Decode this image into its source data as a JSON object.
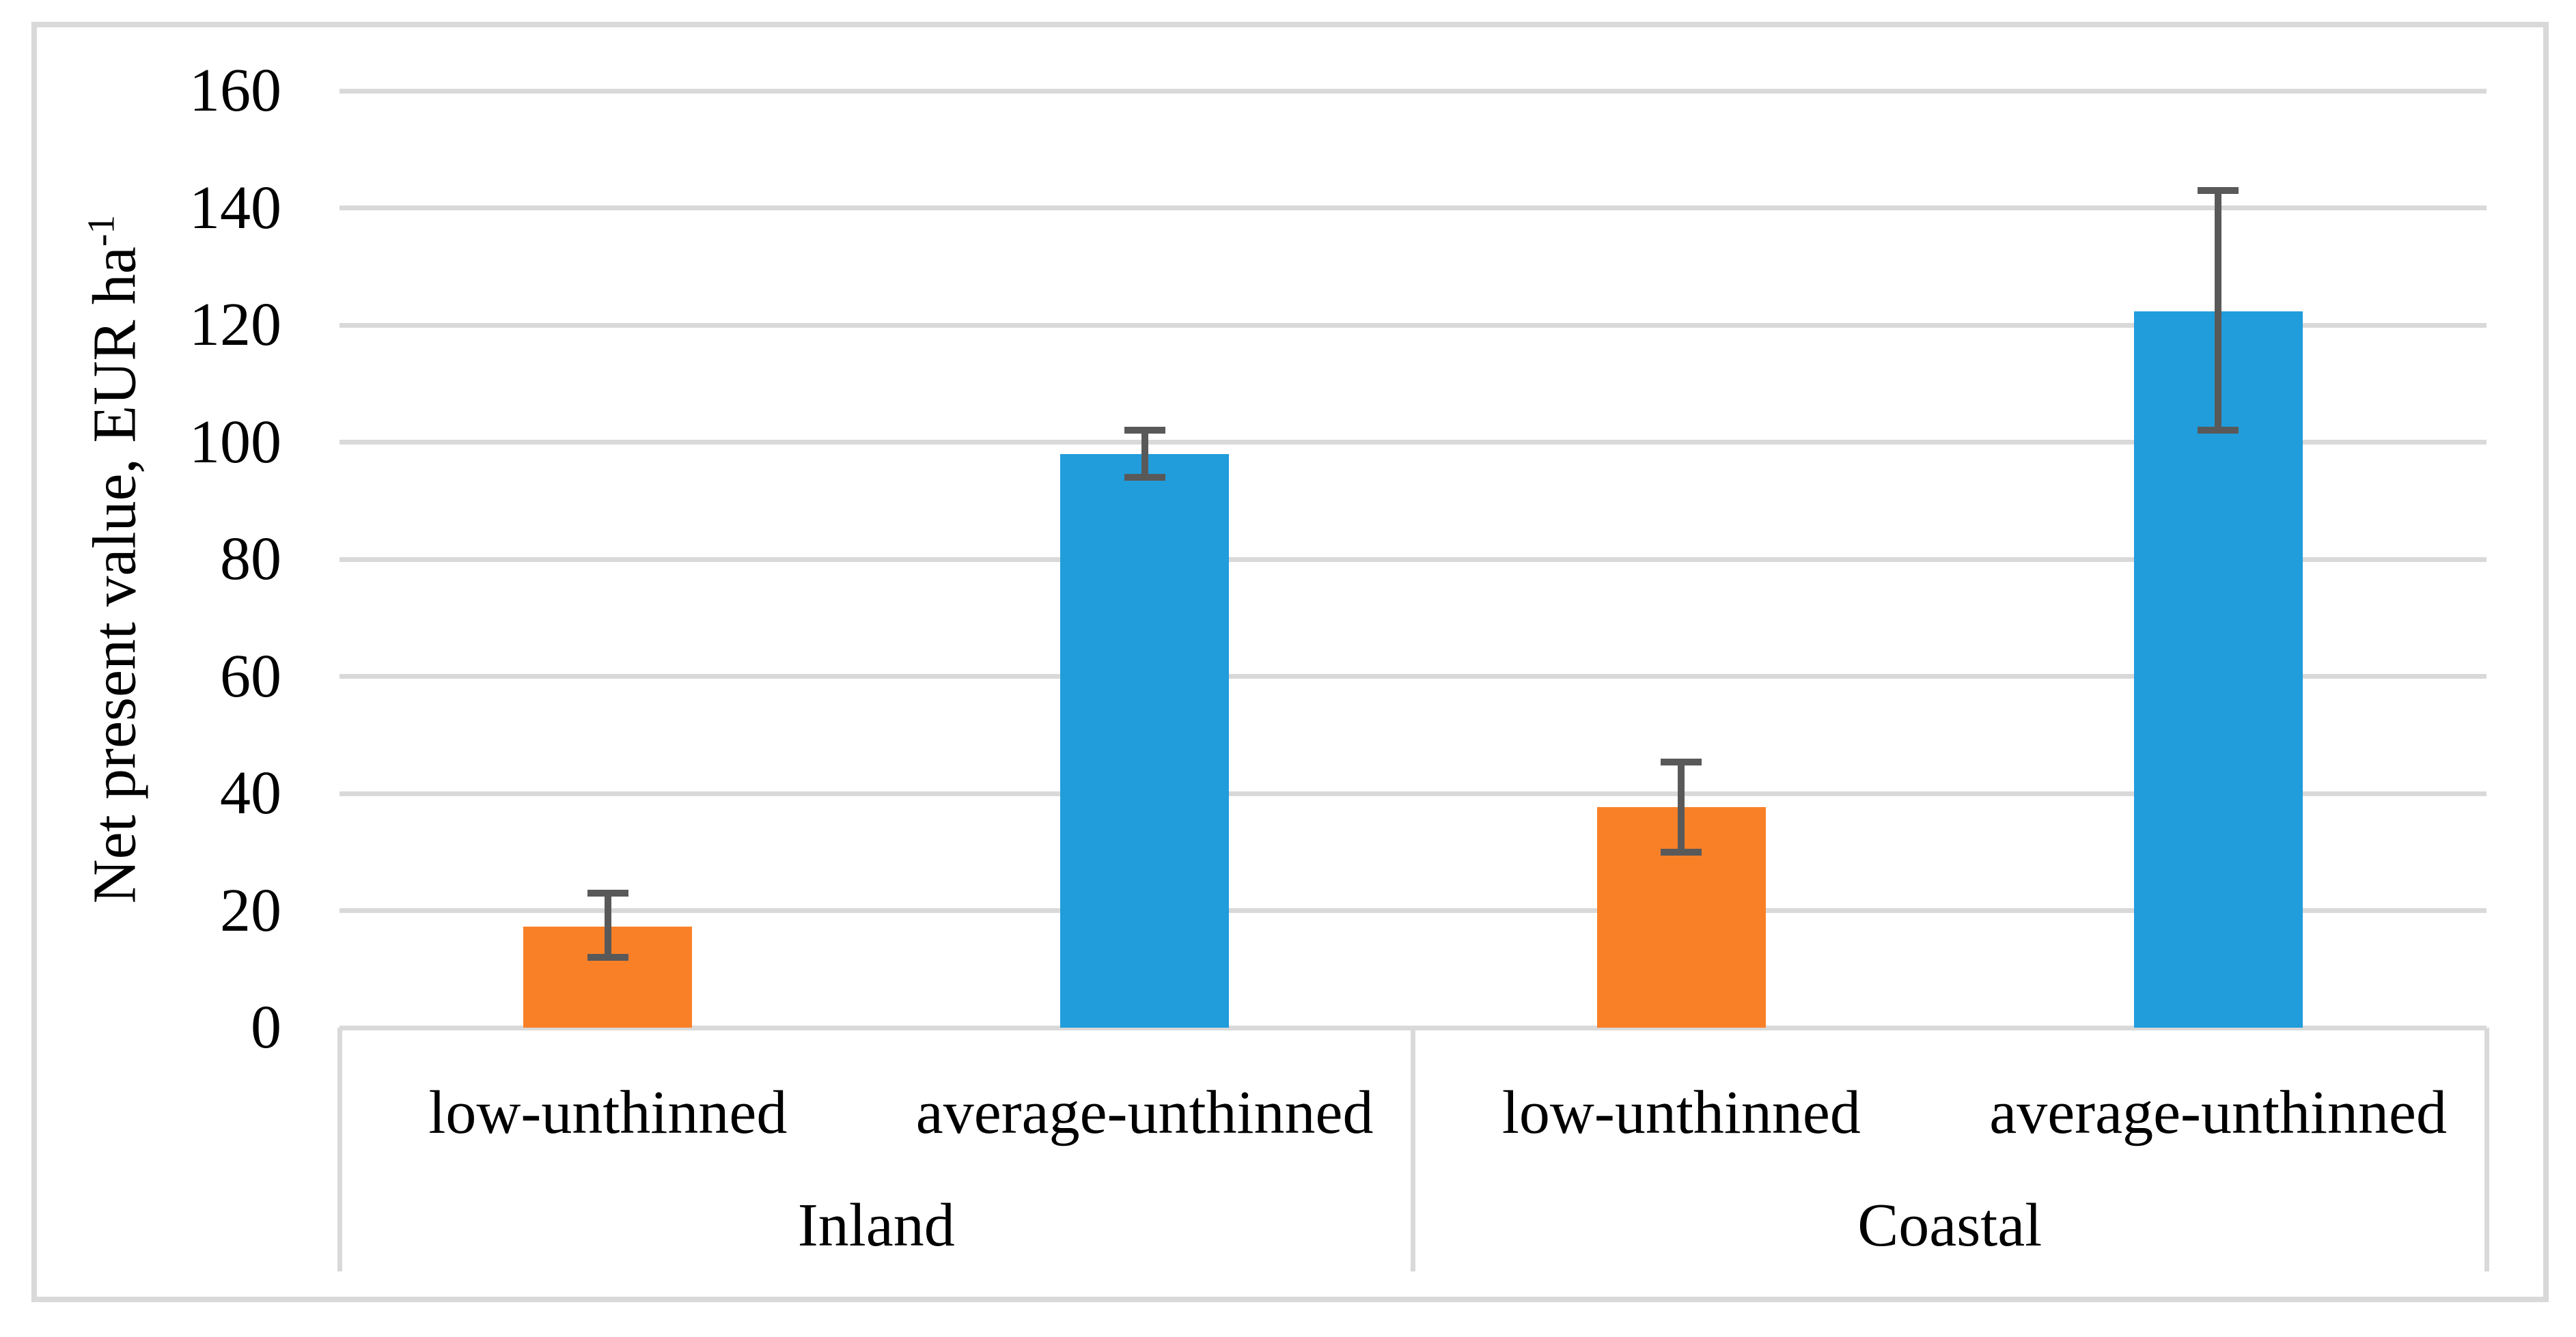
{
  "colors": {
    "bar_orange": "#FA8028",
    "bar_blue": "#219DDB",
    "error_bar": "#595959",
    "gridline": "#D9D9D9",
    "chart_border": "#D9D9D9",
    "text": "#000000",
    "background": "#FFFFFF"
  },
  "chart_data": {
    "type": "bar",
    "title": "",
    "xlabel": "",
    "ylabel": "Net present value, EUR ha⁻¹",
    "ylabel_main": "Net present value, EUR ha",
    "ylabel_superscript": "-1",
    "ylim": [
      0,
      160
    ],
    "yticks": [
      0,
      20,
      40,
      60,
      80,
      100,
      120,
      140,
      160
    ],
    "grid": true,
    "legend": "none",
    "groups": [
      {
        "label": "Inland",
        "bars": [
          {
            "category": "low-unthinned",
            "value": 17.3,
            "error_low": 12,
            "error_high": 23,
            "color_key": "bar_orange"
          },
          {
            "category": "average-unthinned",
            "value": 98,
            "error_low": 94,
            "error_high": 102,
            "color_key": "bar_blue"
          }
        ]
      },
      {
        "label": "Coastal",
        "bars": [
          {
            "category": "low-unthinned",
            "value": 37.7,
            "error_low": 30,
            "error_high": 45.4,
            "color_key": "bar_orange"
          },
          {
            "category": "average-unthinned",
            "value": 122.3,
            "error_low": 102,
            "error_high": 143,
            "color_key": "bar_blue"
          }
        ]
      }
    ]
  }
}
